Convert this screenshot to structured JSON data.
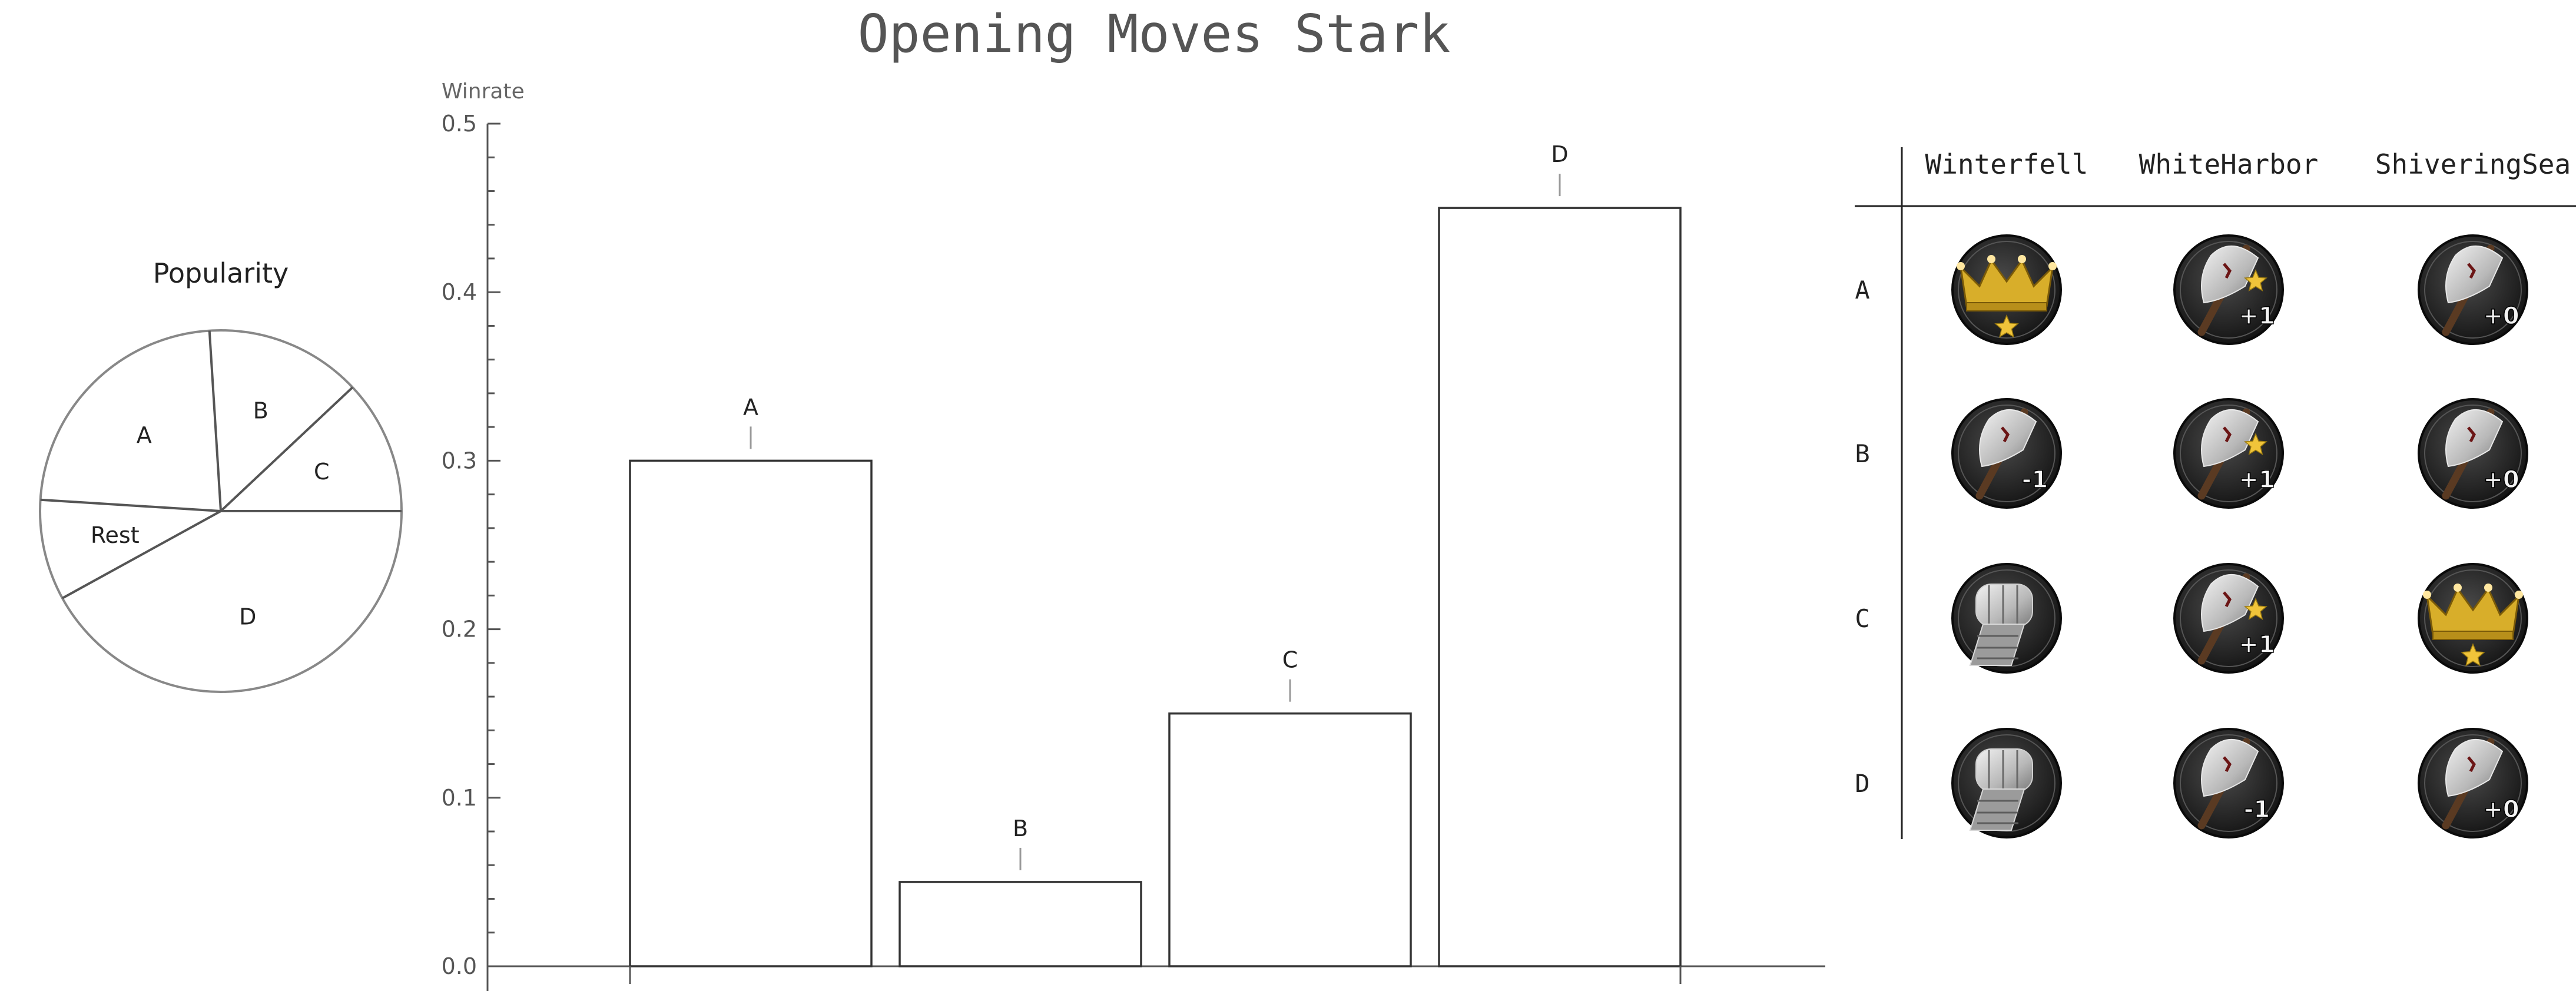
{
  "title": "Opening Moves Stark",
  "chart_data": [
    {
      "type": "pie",
      "title": "Popularity",
      "categories": [
        "A",
        "B",
        "C",
        "D",
        "Rest"
      ],
      "values": [
        0.23,
        0.14,
        0.12,
        0.42,
        0.09
      ]
    },
    {
      "type": "bar",
      "title": "",
      "ylabel": "Winrate",
      "xlabel": "",
      "categories": [
        "A",
        "B",
        "C",
        "D"
      ],
      "values": [
        0.3,
        0.05,
        0.15,
        0.45
      ],
      "ylim": [
        0,
        0.5
      ],
      "yticks": [
        0.0,
        0.1,
        0.2,
        0.3,
        0.4,
        0.5
      ],
      "ytick_labels": [
        "0.0",
        "0.1",
        "0.2",
        "0.3",
        "0.4",
        "0.5"
      ],
      "grid": false,
      "legend": "none"
    }
  ],
  "orders_table": {
    "columns": [
      "Winterfell",
      "WhiteHarbor",
      "ShiveringSea"
    ],
    "rows": [
      {
        "label": "A",
        "cells": [
          {
            "icon": "crown-star-icon",
            "text": ""
          },
          {
            "icon": "march-order-icon",
            "text": "+1"
          },
          {
            "icon": "march-order-icon",
            "text": "+0"
          }
        ]
      },
      {
        "label": "B",
        "cells": [
          {
            "icon": "march-order-icon",
            "text": "-1"
          },
          {
            "icon": "march-order-icon",
            "text": "+1"
          },
          {
            "icon": "march-order-icon",
            "text": "+0"
          }
        ]
      },
      {
        "label": "C",
        "cells": [
          {
            "icon": "fist-order-icon",
            "text": ""
          },
          {
            "icon": "march-order-icon",
            "text": "+1"
          },
          {
            "icon": "crown-star-icon",
            "text": ""
          }
        ]
      },
      {
        "label": "D",
        "cells": [
          {
            "icon": "fist-order-icon",
            "text": ""
          },
          {
            "icon": "march-order-icon",
            "text": "-1"
          },
          {
            "icon": "march-order-icon",
            "text": "+0"
          }
        ]
      }
    ]
  },
  "colors": {
    "text": "#333333",
    "axis": "#555555",
    "token_dark": "#1f1f1f",
    "gold": "#d8ae2a",
    "star": "#f0c43a"
  }
}
